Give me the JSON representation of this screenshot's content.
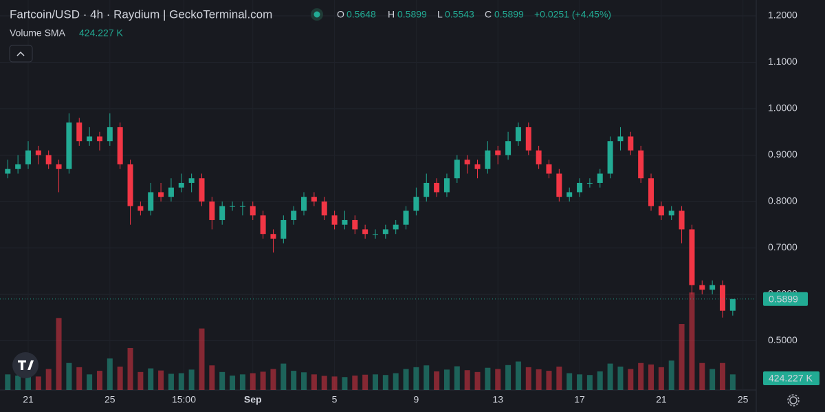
{
  "header": {
    "title": "Fartcoin/USD · 4h · Raydium | GeckoTerminal.com",
    "ohlc_labels": [
      "O",
      "H",
      "L",
      "C"
    ],
    "change": "+0.0251 (+4.45%)",
    "volume_label": "Volume SMA",
    "volume_sma": "424.227 K"
  },
  "chart_data": {
    "type": "candlestick",
    "open": [
      0.86,
      0.87,
      0.88,
      0.91,
      0.9,
      0.88,
      0.87,
      0.97,
      0.93,
      0.94,
      0.93,
      0.96,
      0.88,
      0.79,
      0.78,
      0.82,
      0.81,
      0.83,
      0.84,
      0.85,
      0.8,
      0.76,
      0.79,
      0.79,
      0.79,
      0.77,
      0.73,
      0.72,
      0.76,
      0.78,
      0.81,
      0.8,
      0.77,
      0.75,
      0.76,
      0.74,
      0.73,
      0.73,
      0.74,
      0.75,
      0.78,
      0.81,
      0.84,
      0.82,
      0.85,
      0.89,
      0.88,
      0.87,
      0.91,
      0.9,
      0.93,
      0.96,
      0.91,
      0.88,
      0.86,
      0.81,
      0.82,
      0.84,
      0.84,
      0.86,
      0.93,
      0.94,
      0.91,
      0.85,
      0.79,
      0.77,
      0.78,
      0.74,
      0.62,
      0.61,
      0.62,
      0.5648
    ],
    "high": [
      0.89,
      0.9,
      0.93,
      0.92,
      0.91,
      0.89,
      0.99,
      0.98,
      0.96,
      0.95,
      0.99,
      0.97,
      0.89,
      0.8,
      0.84,
      0.84,
      0.85,
      0.86,
      0.86,
      0.86,
      0.81,
      0.8,
      0.8,
      0.8,
      0.8,
      0.78,
      0.74,
      0.77,
      0.79,
      0.82,
      0.82,
      0.81,
      0.78,
      0.78,
      0.77,
      0.75,
      0.74,
      0.75,
      0.76,
      0.79,
      0.83,
      0.86,
      0.85,
      0.86,
      0.9,
      0.9,
      0.89,
      0.93,
      0.92,
      0.95,
      0.97,
      0.97,
      0.92,
      0.89,
      0.87,
      0.83,
      0.85,
      0.85,
      0.87,
      0.94,
      0.96,
      0.95,
      0.92,
      0.86,
      0.8,
      0.79,
      0.79,
      0.75,
      0.63,
      0.63,
      0.63,
      0.5899
    ],
    "low": [
      0.85,
      0.86,
      0.87,
      0.88,
      0.87,
      0.82,
      0.86,
      0.92,
      0.92,
      0.91,
      0.92,
      0.87,
      0.75,
      0.77,
      0.77,
      0.8,
      0.8,
      0.82,
      0.82,
      0.79,
      0.74,
      0.75,
      0.78,
      0.77,
      0.76,
      0.72,
      0.69,
      0.71,
      0.75,
      0.77,
      0.79,
      0.76,
      0.74,
      0.74,
      0.73,
      0.72,
      0.72,
      0.72,
      0.73,
      0.74,
      0.77,
      0.8,
      0.81,
      0.81,
      0.84,
      0.86,
      0.85,
      0.86,
      0.88,
      0.89,
      0.92,
      0.9,
      0.87,
      0.85,
      0.8,
      0.8,
      0.81,
      0.83,
      0.83,
      0.85,
      0.91,
      0.9,
      0.84,
      0.78,
      0.76,
      0.76,
      0.71,
      0.6,
      0.6,
      0.6,
      0.55,
      0.5543
    ],
    "close": [
      0.87,
      0.88,
      0.91,
      0.9,
      0.88,
      0.87,
      0.97,
      0.93,
      0.94,
      0.93,
      0.96,
      0.88,
      0.79,
      0.78,
      0.82,
      0.81,
      0.83,
      0.84,
      0.85,
      0.8,
      0.76,
      0.79,
      0.79,
      0.79,
      0.77,
      0.73,
      0.72,
      0.76,
      0.78,
      0.81,
      0.8,
      0.77,
      0.75,
      0.76,
      0.74,
      0.73,
      0.73,
      0.74,
      0.75,
      0.78,
      0.81,
      0.84,
      0.82,
      0.85,
      0.89,
      0.88,
      0.87,
      0.91,
      0.9,
      0.93,
      0.96,
      0.91,
      0.88,
      0.86,
      0.81,
      0.82,
      0.84,
      0.84,
      0.86,
      0.93,
      0.94,
      0.91,
      0.85,
      0.79,
      0.77,
      0.78,
      0.74,
      0.62,
      0.61,
      0.62,
      0.5648,
      0.5899
    ],
    "volume": [
      520,
      480,
      610,
      450,
      700,
      2400,
      900,
      760,
      520,
      640,
      1050,
      780,
      1400,
      600,
      720,
      650,
      540,
      560,
      680,
      2050,
      820,
      600,
      480,
      520,
      560,
      610,
      700,
      880,
      640,
      590,
      520,
      470,
      450,
      430,
      480,
      510,
      520,
      500,
      560,
      700,
      760,
      820,
      620,
      680,
      790,
      660,
      600,
      740,
      700,
      830,
      950,
      760,
      690,
      640,
      780,
      560,
      520,
      500,
      620,
      880,
      780,
      700,
      900,
      850,
      760,
      980,
      2200,
      3250,
      900,
      700,
      900,
      520
    ],
    "up_color": "#22ab94",
    "down_color": "#f23645",
    "xlim": [
      -0.76,
      73.3
    ],
    "xticks": [
      {
        "value": 2,
        "label": "21"
      },
      {
        "value": 10,
        "label": "25"
      },
      {
        "value": 17.25,
        "label": "15:00"
      },
      {
        "value": 24,
        "label": "Sep"
      },
      {
        "value": 32,
        "label": "5"
      },
      {
        "value": 40,
        "label": "9"
      },
      {
        "value": 48,
        "label": "13"
      },
      {
        "value": 56,
        "label": "17"
      },
      {
        "value": 64,
        "label": "21"
      },
      {
        "value": 72,
        "label": "25"
      }
    ],
    "ylim": [
      0.394,
      1.234
    ],
    "yticks": [
      {
        "value": 0.5,
        "label": "0.5000"
      },
      {
        "value": 0.6,
        "label": "0.6000"
      },
      {
        "value": 0.7,
        "label": "0.7000"
      },
      {
        "value": 0.8,
        "label": "0.8000"
      },
      {
        "value": 0.9,
        "label": "0.9000"
      },
      {
        "value": 1,
        "label": "1.0000"
      },
      {
        "value": 1.1,
        "label": "1.1000"
      },
      {
        "value": 1.2,
        "label": "1.2000"
      }
    ],
    "volume_ylim": [
      0,
      13000
    ],
    "grid": true
  }
}
